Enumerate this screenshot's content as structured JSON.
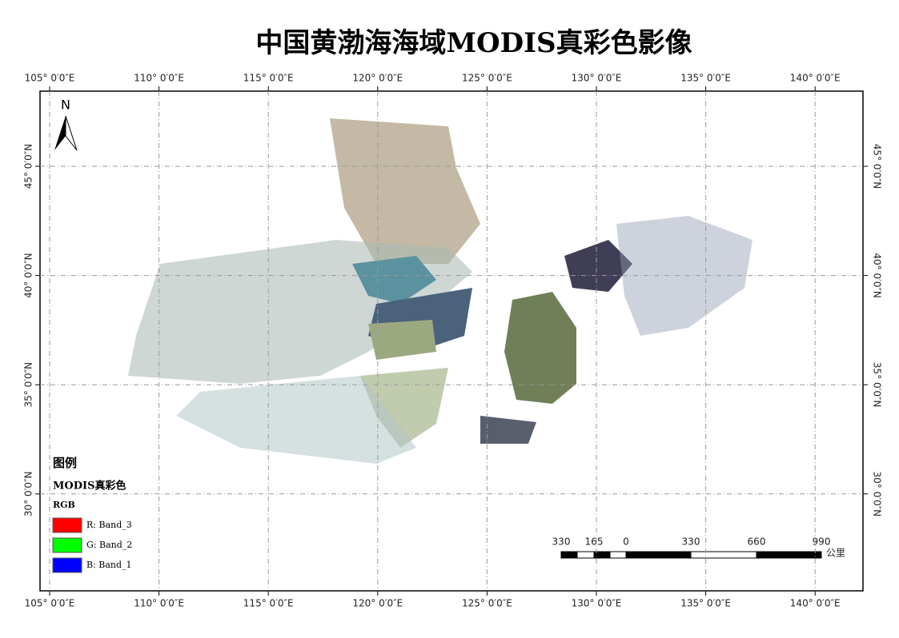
{
  "title": "中国黄渤海海域MODIS真彩色影像",
  "graticule": {
    "longitudes": [
      {
        "value": 105,
        "label": "105° 0′0″E"
      },
      {
        "value": 110,
        "label": "110° 0′0″E"
      },
      {
        "value": 115,
        "label": "115° 0′0″E"
      },
      {
        "value": 120,
        "label": "120° 0′0″E"
      },
      {
        "value": 125,
        "label": "125° 0′0″E"
      },
      {
        "value": 130,
        "label": "130° 0′0″E"
      },
      {
        "value": 135,
        "label": "135° 0′0″E"
      },
      {
        "value": 140,
        "label": "140° 0′0″E"
      }
    ],
    "latitudes": [
      {
        "value": 45,
        "label": "45° 0′0″N"
      },
      {
        "value": 40,
        "label": "40° 0′0″N"
      },
      {
        "value": 35,
        "label": "35° 0′0″N"
      },
      {
        "value": 30,
        "label": "30° 0′0″N"
      }
    ]
  },
  "north_arrow": "N",
  "legend": {
    "title": "图例",
    "layer": "MODIS真彩色",
    "renderer": "RGB",
    "items": [
      {
        "label": "R: Band_3",
        "color": "#ff0000"
      },
      {
        "label": "G: Band_2",
        "color": "#00ff00"
      },
      {
        "label": "B: Band_1",
        "color": "#0000ff"
      }
    ]
  },
  "scale_bar": {
    "labels": [
      "330",
      "165",
      "0",
      "330",
      "660",
      "990"
    ],
    "unit": "公里"
  }
}
